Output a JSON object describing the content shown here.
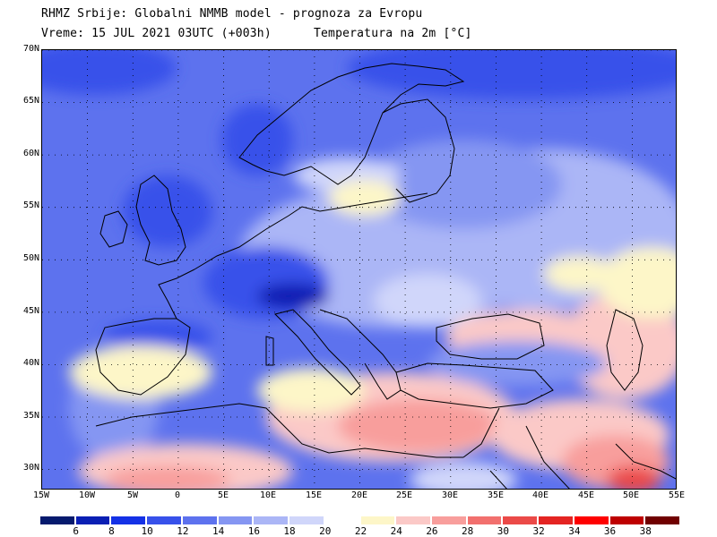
{
  "header": {
    "line1": "RHMZ Srbije: Globalni NMMB model - prognoza za Evropu",
    "line2": "Vreme: 15 JUL 2021 03UTC (+003h)",
    "line3": "Temperatura na 2m [°C]"
  },
  "map": {
    "lat_labels": [
      "70N",
      "65N",
      "60N",
      "55N",
      "50N",
      "45N",
      "40N",
      "35N",
      "30N"
    ],
    "lon_labels": [
      "15W",
      "10W",
      "5W",
      "0",
      "5E",
      "10E",
      "15E",
      "20E",
      "25E",
      "30E",
      "35E",
      "40E",
      "45E",
      "50E",
      "55E"
    ],
    "lon_range": [
      -15,
      55
    ],
    "lat_range": [
      28,
      70
    ]
  },
  "colorbar": {
    "labels": [
      "6",
      "8",
      "10",
      "12",
      "14",
      "16",
      "18",
      "20",
      "22",
      "24",
      "26",
      "28",
      "30",
      "32",
      "34",
      "36",
      "38"
    ],
    "colors": [
      "#061a6e",
      "#0a1fb4",
      "#1431e6",
      "#3751ea",
      "#5d72ee",
      "#8596f2",
      "#abb6f6",
      "#d0d6fa",
      "#ffffff",
      "#fdf6c8",
      "#fbc9c7",
      "#f89e9c",
      "#f2706e",
      "#eb4a48",
      "#e42422",
      "#fe0000",
      "#be0000",
      "#700000"
    ]
  }
}
